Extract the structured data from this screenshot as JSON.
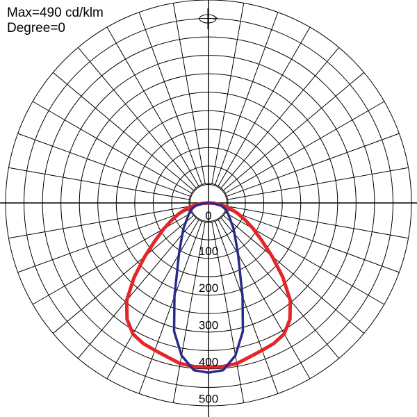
{
  "header": {
    "max_text": "Max=490 cd/klm",
    "degree_text": "Degree=0"
  },
  "icons": {
    "rotation": "rotate-icon"
  },
  "chart_data": {
    "type": "polar",
    "unit": "cd/klm",
    "max_value": 490,
    "degree": 0,
    "radial_max": 550,
    "radial_ticks": [
      0,
      100,
      200,
      300,
      400,
      500
    ],
    "radial_tick_labels": [
      "0",
      "100",
      "200",
      "300",
      "400",
      "500"
    ],
    "grid": true,
    "angular_step_deg": 10,
    "colors": {
      "grid": "#000000",
      "curve_c0_c180": "#e3262a",
      "curve_c90_c270": "#2a2a8a"
    },
    "series": [
      {
        "color": "#e3262a",
        "angles_deg": [
          -90,
          -85,
          -80,
          -75,
          -70,
          -65,
          -60,
          -55,
          -50,
          -45,
          -40,
          -35,
          -30,
          -25,
          -20,
          -15,
          -10,
          -5,
          0,
          5,
          10,
          15,
          20,
          25,
          30,
          35,
          40,
          45,
          50,
          55,
          60,
          65,
          70,
          75,
          80,
          85,
          90
        ],
        "values": [
          0,
          18,
          40,
          62,
          85,
          110,
          140,
          175,
          225,
          285,
          345,
          385,
          410,
          420,
          425,
          432,
          442,
          445,
          445,
          445,
          442,
          432,
          425,
          420,
          410,
          385,
          345,
          285,
          225,
          175,
          140,
          110,
          85,
          62,
          40,
          18,
          0
        ]
      },
      {
        "color": "#2a2a8a",
        "angles_deg": [
          -90,
          -85,
          -80,
          -75,
          -70,
          -65,
          -60,
          -55,
          -50,
          -45,
          -40,
          -35,
          -30,
          -25,
          -20,
          -15,
          -10,
          -5,
          0,
          5,
          10,
          15,
          20,
          25,
          30,
          35,
          40,
          45,
          50,
          55,
          60,
          65,
          70,
          75,
          80,
          85,
          90
        ],
        "values": [
          0,
          15,
          30,
          40,
          48,
          55,
          62,
          70,
          80,
          95,
          110,
          130,
          160,
          200,
          270,
          360,
          420,
          455,
          460,
          455,
          420,
          360,
          270,
          200,
          160,
          130,
          110,
          95,
          80,
          70,
          62,
          55,
          48,
          40,
          30,
          15,
          0
        ]
      }
    ]
  }
}
